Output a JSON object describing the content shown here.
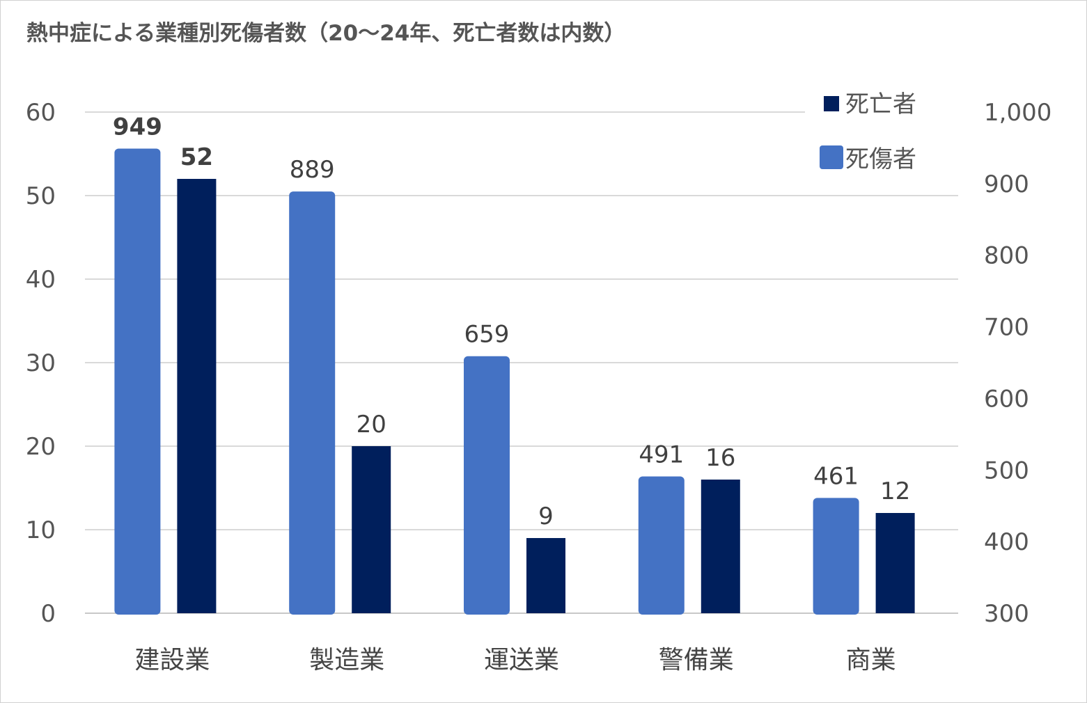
{
  "title": "熱中症による業種別死傷者数（20〜24年、死亡者数は内数）",
  "chart_data": {
    "type": "bar",
    "title": "熱中症による業種別死傷者数（20〜24年、死亡者数は内数）",
    "categories": [
      "建設業",
      "製造業",
      "運送業",
      "警備業",
      "商業"
    ],
    "series": [
      {
        "name": "死傷者",
        "axis": "right",
        "color": "#4472c4",
        "values": [
          949,
          889,
          659,
          491,
          461
        ]
      },
      {
        "name": "死亡者",
        "axis": "left",
        "color": "#001f5c",
        "values": [
          52,
          20,
          9,
          16,
          12
        ]
      }
    ],
    "left_axis": {
      "ylim": [
        0,
        60
      ],
      "ticks": [
        "0",
        "10",
        "20",
        "30",
        "40",
        "50",
        "60"
      ]
    },
    "right_axis": {
      "ylim": [
        300,
        1000
      ],
      "ticks": [
        "300",
        "400",
        "500",
        "600",
        "700",
        "800",
        "900",
        "1,000"
      ]
    },
    "data_labels": {
      "injured": [
        "949",
        "889",
        "659",
        "491",
        "461"
      ],
      "deaths": [
        "52",
        "20",
        "9",
        "16",
        "12"
      ]
    },
    "bold_category_index": 0,
    "legend": {
      "position": "top-right",
      "entries": [
        "死亡者",
        "死傷者"
      ]
    },
    "grid": true
  }
}
